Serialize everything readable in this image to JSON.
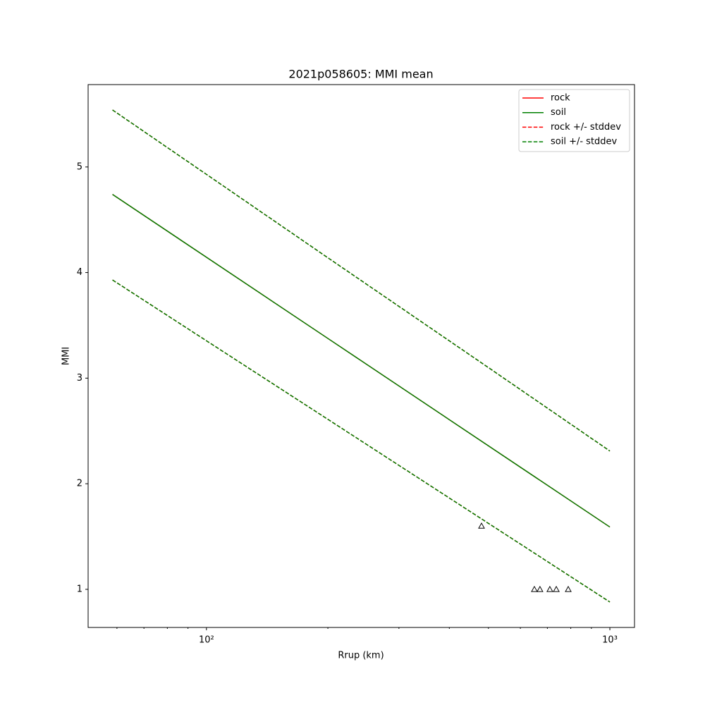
{
  "chart_data": {
    "type": "line",
    "title": "2021p058605: MMI mean",
    "x_label": "Rrup (km)",
    "y_label": "MMI",
    "x_scale": "log",
    "xlim": [
      50.9,
      1151
    ],
    "ylim": [
      0.639,
      5.78
    ],
    "xticks": [
      {
        "value": 100,
        "label": "10²"
      },
      {
        "value": 1000,
        "label": "10³"
      }
    ],
    "xminorticks": [
      60,
      70,
      80,
      90,
      200,
      300,
      400,
      500,
      600,
      700,
      800,
      900
    ],
    "yticks": [
      1,
      2,
      3,
      4,
      5
    ],
    "legend": "upper right",
    "x": [
      58.5,
      100,
      200,
      500,
      1000
    ],
    "series": [
      {
        "name": "rock",
        "color": "#ff0000",
        "style": "solid",
        "values": [
          4.74,
          4.145,
          3.376,
          2.359,
          1.59
        ]
      },
      {
        "name": "soil",
        "color": "#008000",
        "style": "solid",
        "values": [
          4.74,
          4.145,
          3.376,
          2.359,
          1.59
        ]
      },
      {
        "name": "rock +/- stddev",
        "color": "#ff0000",
        "style": "dashed",
        "upper": [
          5.54,
          4.93,
          4.14,
          3.1,
          2.31
        ],
        "lower": [
          3.93,
          3.354,
          2.61,
          1.625,
          0.88
        ]
      },
      {
        "name": "soil +/- stddev",
        "color": "#008000",
        "style": "dashed",
        "upper": [
          5.54,
          4.93,
          4.14,
          3.1,
          2.31
        ],
        "lower": [
          3.93,
          3.354,
          2.61,
          1.625,
          0.88
        ]
      }
    ],
    "observed": {
      "marker": "triangle",
      "color": "#000000",
      "x": [
        480.7,
        650,
        671,
        710,
        736.6,
        788.6
      ],
      "values": [
        1.6,
        1.0,
        1.0,
        1.0,
        1.0,
        1.0
      ]
    }
  }
}
